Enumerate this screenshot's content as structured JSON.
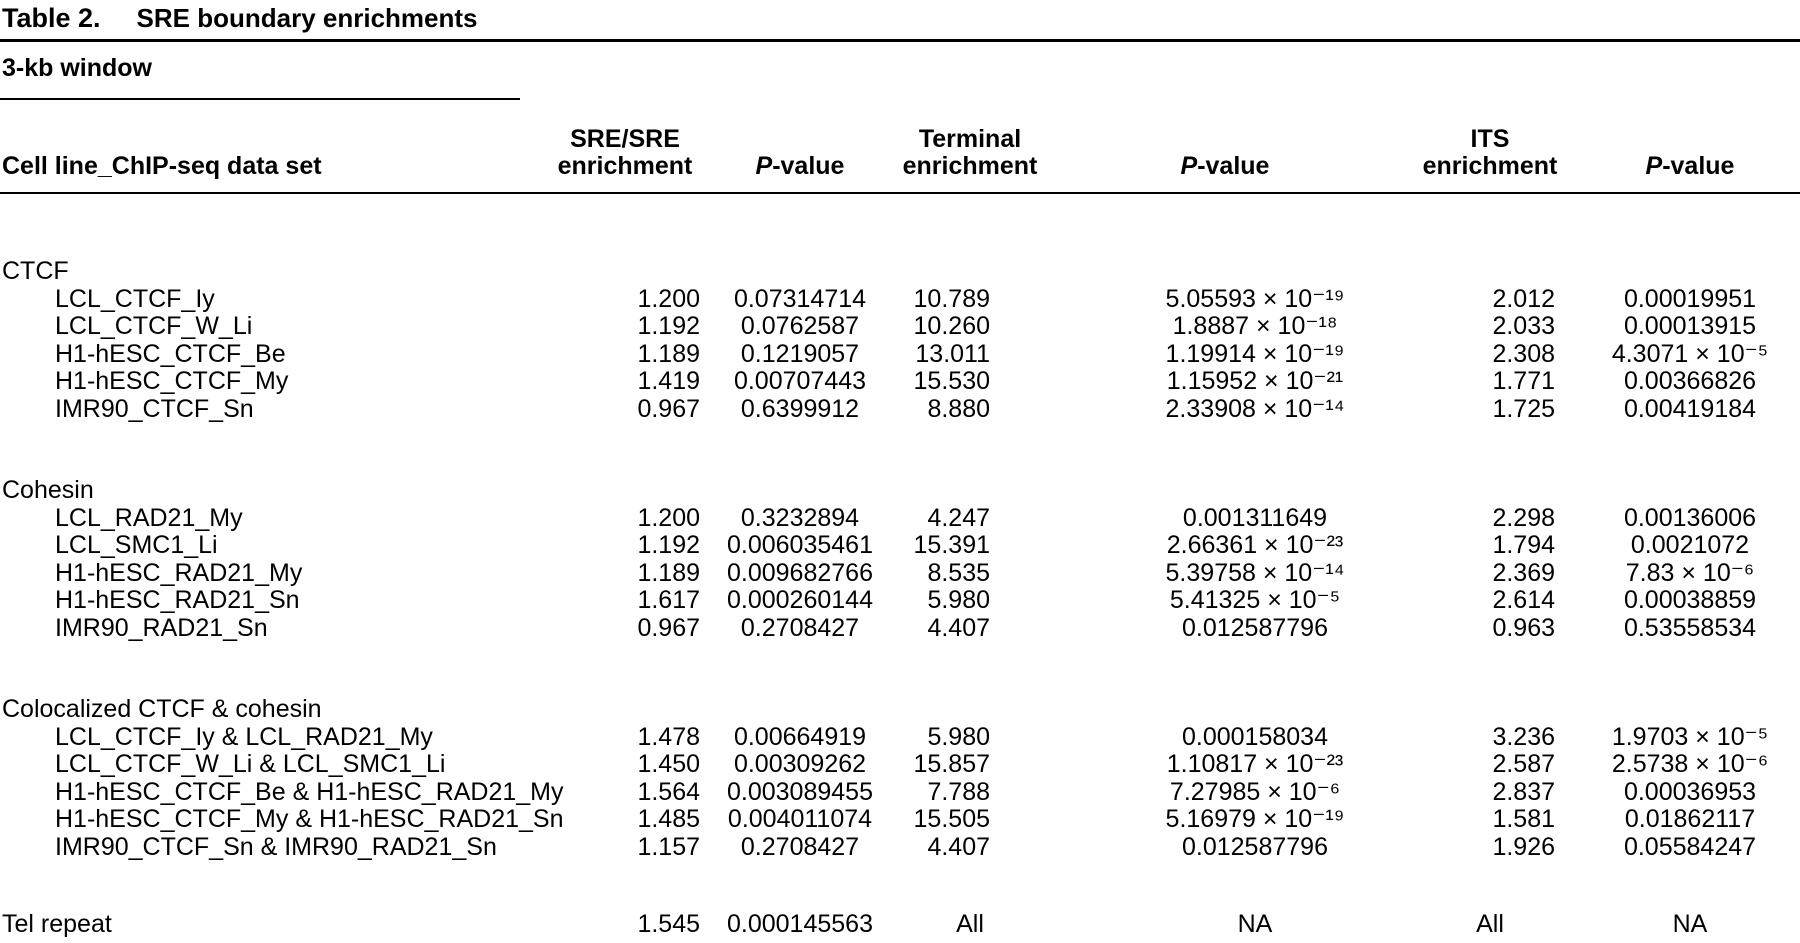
{
  "title": {
    "label": "Table 2.",
    "caption": "SRE boundary enrichments"
  },
  "window_label": "3-kb window",
  "table": {
    "header": {
      "dataset": "Cell line_ChIP-seq data set",
      "sre": {
        "line1": "SRE/SRE",
        "line2": "enrichment"
      },
      "sre_p": {
        "italic": "P",
        "text": "-value"
      },
      "terminal": {
        "line1": "Terminal",
        "line2": "enrichment"
      },
      "terminal_p": {
        "italic": "P",
        "text": "-value"
      },
      "its": {
        "line1": "ITS",
        "line2": "enrichment"
      },
      "its_p": {
        "italic": "P",
        "text": "-value"
      }
    },
    "sections": [
      {
        "label": "CTCF",
        "rows": [
          {
            "name": "LCL_CTCF_Iy",
            "sre": "1.200",
            "sre_p": "0.07314714",
            "terminal": "10.789",
            "terminal_p": "5.05593 × 10⁻¹⁹",
            "its": "2.012",
            "its_p": "0.00019951"
          },
          {
            "name": "LCL_CTCF_W_Li",
            "sre": "1.192",
            "sre_p": "0.0762587",
            "terminal": "10.260",
            "terminal_p": "1.8887 × 10⁻¹⁸",
            "its": "2.033",
            "its_p": "0.00013915"
          },
          {
            "name": "H1-hESC_CTCF_Be",
            "sre": "1.189",
            "sre_p": "0.1219057",
            "terminal": "13.011",
            "terminal_p": "1.19914 × 10⁻¹⁹",
            "its": "2.308",
            "its_p": "4.3071 × 10⁻⁵"
          },
          {
            "name": "H1-hESC_CTCF_My",
            "sre": "1.419",
            "sre_p": "0.00707443",
            "terminal": "15.530",
            "terminal_p": "1.15952 × 10⁻²¹",
            "its": "1.771",
            "its_p": "0.00366826"
          },
          {
            "name": "IMR90_CTCF_Sn",
            "sre": "0.967",
            "sre_p": "0.6399912",
            "terminal": "8.880",
            "terminal_p": "2.33908 × 10⁻¹⁴",
            "its": "1.725",
            "its_p": "0.00419184"
          }
        ]
      },
      {
        "label": "Cohesin",
        "rows": [
          {
            "name": "LCL_RAD21_My",
            "sre": "1.200",
            "sre_p": "0.3232894",
            "terminal": "4.247",
            "terminal_p": "0.001311649",
            "its": "2.298",
            "its_p": "0.00136006"
          },
          {
            "name": "LCL_SMC1_Li",
            "sre": "1.192",
            "sre_p": "0.006035461",
            "terminal": "15.391",
            "terminal_p": "2.66361 × 10⁻²³",
            "its": "1.794",
            "its_p": "0.0021072"
          },
          {
            "name": "H1-hESC_RAD21_My",
            "sre": "1.189",
            "sre_p": "0.009682766",
            "terminal": "8.535",
            "terminal_p": "5.39758 × 10⁻¹⁴",
            "its": "2.369",
            "its_p": "7.83 × 10⁻⁶"
          },
          {
            "name": "H1-hESC_RAD21_Sn",
            "sre": "1.617",
            "sre_p": "0.000260144",
            "terminal": "5.980",
            "terminal_p": "5.41325 × 10⁻⁵",
            "its": "2.614",
            "its_p": "0.00038859"
          },
          {
            "name": "IMR90_RAD21_Sn",
            "sre": "0.967",
            "sre_p": "0.2708427",
            "terminal": "4.407",
            "terminal_p": "0.012587796",
            "its": "0.963",
            "its_p": "0.53558534"
          }
        ]
      },
      {
        "label": "Colocalized CTCF & cohesin",
        "rows": [
          {
            "name": "LCL_CTCF_Iy & LCL_RAD21_My",
            "sre": "1.478",
            "sre_p": "0.00664919",
            "terminal": "5.980",
            "terminal_p": "0.000158034",
            "its": "3.236",
            "its_p": "1.9703 × 10⁻⁵"
          },
          {
            "name": "LCL_CTCF_W_Li & LCL_SMC1_Li",
            "sre": "1.450",
            "sre_p": "0.00309262",
            "terminal": "15.857",
            "terminal_p": "1.10817 × 10⁻²³",
            "its": "2.587",
            "its_p": "2.5738 × 10⁻⁶"
          },
          {
            "name": "H1-hESC_CTCF_Be & H1-hESC_RAD21_My",
            "sre": "1.564",
            "sre_p": "0.003089455",
            "terminal": "7.788",
            "terminal_p": "7.27985 × 10⁻⁶",
            "its": "2.837",
            "its_p": "0.00036953"
          },
          {
            "name": "H1-hESC_CTCF_My & H1-hESC_RAD21_Sn",
            "sre": "1.485",
            "sre_p": "0.004011074",
            "terminal": "15.505",
            "terminal_p": "5.16979 × 10⁻¹⁹",
            "its": "1.581",
            "its_p": "0.01862117"
          },
          {
            "name": "IMR90_CTCF_Sn & IMR90_RAD21_Sn",
            "sre": "1.157",
            "sre_p": "0.2708427",
            "terminal": "4.407",
            "terminal_p": "0.012587796",
            "its": "1.926",
            "its_p": "0.05584247"
          }
        ]
      }
    ],
    "tel_row": {
      "name": "Tel repeat",
      "sre": "1.545",
      "sre_p": "0.000145563",
      "terminal": "All",
      "terminal_p": "NA",
      "its": "All",
      "its_p": "NA"
    }
  }
}
